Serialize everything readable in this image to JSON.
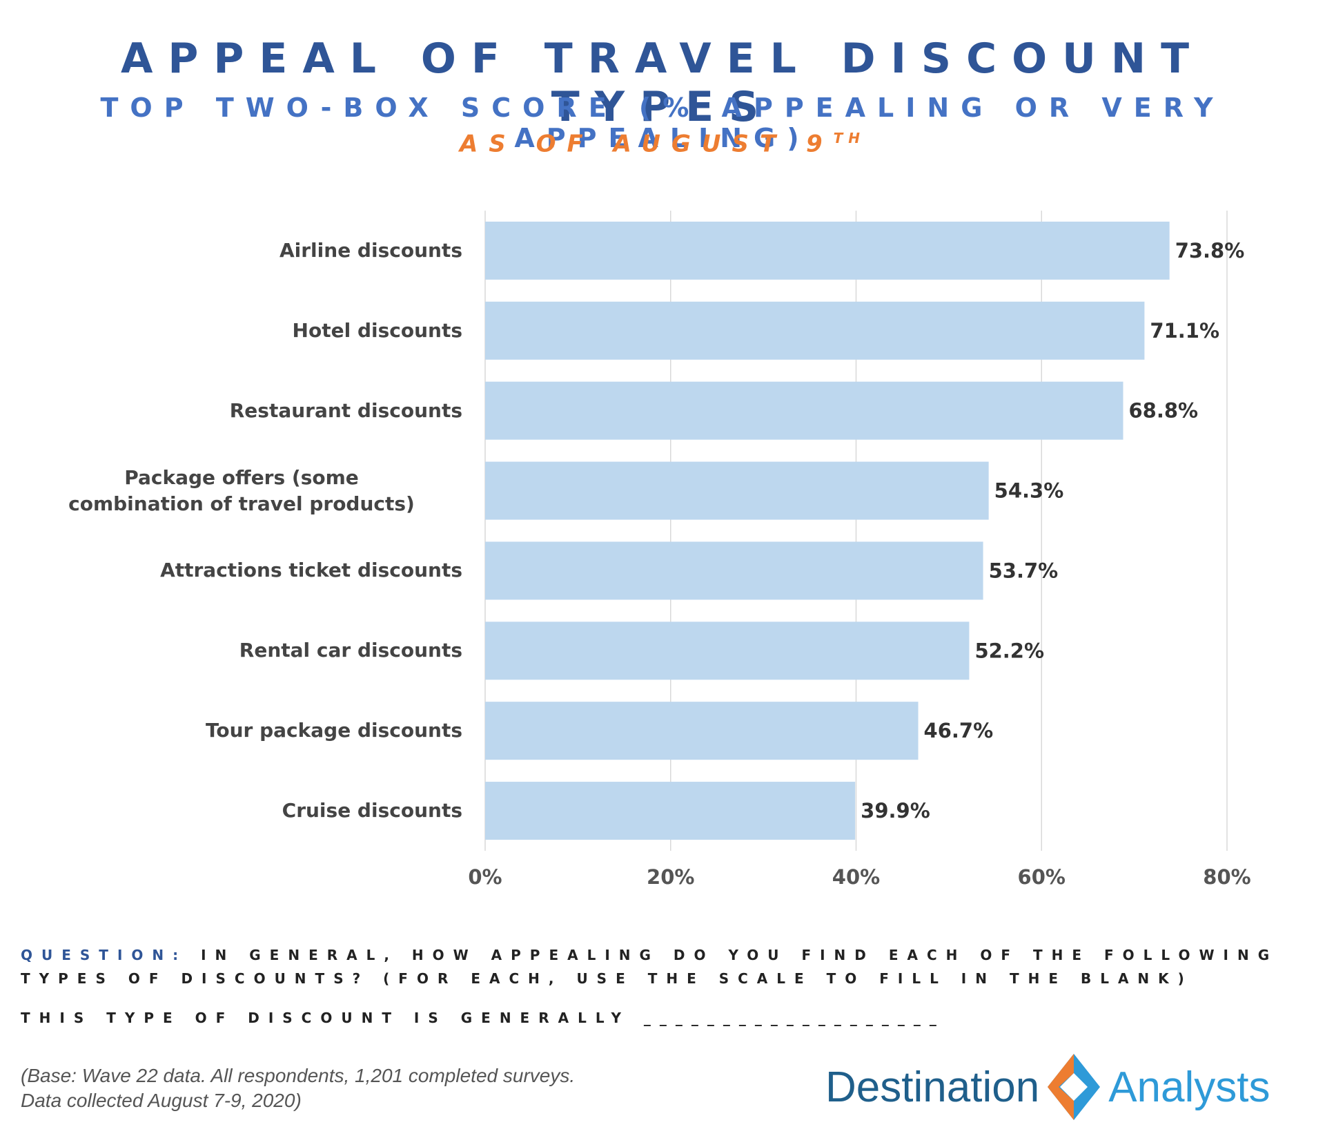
{
  "title": "APPEAL OF TRAVEL DISCOUNT TYPES",
  "subtitle": "TOP TWO-BOX SCORE (% APPEALING OR VERY APPEALING)",
  "date_main": "AS OF AUGUST 9",
  "date_sup": "TH",
  "chart_data": {
    "type": "bar",
    "orientation": "horizontal",
    "categories": [
      "Airline discounts",
      "Hotel discounts",
      "Restaurant discounts",
      "Package offers (some combination of travel  products)",
      "Attractions ticket discounts",
      "Rental car discounts",
      "Tour package discounts",
      "Cruise discounts"
    ],
    "values": [
      73.8,
      71.1,
      68.8,
      54.3,
      53.7,
      52.2,
      46.7,
      39.9
    ],
    "value_labels": [
      "73.8%",
      "71.1%",
      "68.8%",
      "54.3%",
      "53.7%",
      "52.2%",
      "46.7%",
      "39.9%"
    ],
    "xlim": [
      0,
      80
    ],
    "xticks": [
      0,
      20,
      40,
      60,
      80
    ],
    "xtick_labels": [
      "0%",
      "20%",
      "40%",
      "60%",
      "80%"
    ],
    "grid": true,
    "bar_color": "#bdd7ee",
    "grid_color": "#d9d9d9"
  },
  "question": {
    "lead": "QUESTION:",
    "text": " IN GENERAL, HOW APPEALING DO YOU FIND EACH OF THE FOLLOWING TYPES OF DISCOUNTS?  (FOR EACH, USE THE SCALE TO FILL IN THE BLANK)",
    "line": "THIS TYPE OF DISCOUNT IS GENERALLY ___________________"
  },
  "base_note": {
    "line1": "(Base: Wave 22 data. All respondents, 1,201 completed surveys.",
    "line2": "Data collected August 7-9, 2020)"
  },
  "logo": {
    "word1": "Destination",
    "word2": "Analysts",
    "icon": "diamond-logo-icon",
    "colors": {
      "dark_blue": "#1f5f8b",
      "light_blue": "#2e9ad8",
      "orange": "#ed7d31"
    }
  },
  "colors": {
    "title": "#2f5597",
    "subtitle": "#4472c4",
    "date": "#ed7d31"
  }
}
